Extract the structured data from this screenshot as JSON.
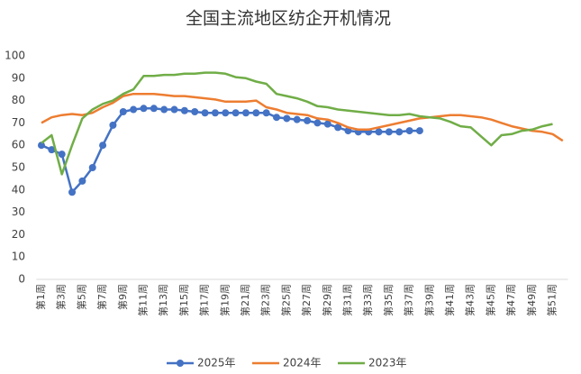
{
  "chart_data": {
    "type": "line",
    "title": "全国主流地区纺企开机情况",
    "categories": [
      "第1周",
      null,
      "第3周",
      null,
      "第5周",
      null,
      "第7周",
      null,
      "第9周",
      null,
      "第11周",
      null,
      "第13周",
      null,
      "第15周",
      null,
      "第17周",
      null,
      "第19周",
      null,
      "第21周",
      null,
      "第23周",
      null,
      "第25周",
      null,
      "第27周",
      null,
      "第29周",
      null,
      "第31周",
      null,
      "第33周",
      null,
      "第35周",
      null,
      "第37周",
      null,
      "第39周",
      null,
      "第41周",
      null,
      "第43周",
      null,
      "第45周",
      null,
      "第47周",
      null,
      "第49周",
      null,
      "第51周",
      null
    ],
    "series": [
      {
        "name": "2025年",
        "color": "#4472c4",
        "marker": true,
        "values": [
          60,
          58,
          56,
          39,
          44,
          50,
          60,
          69,
          75,
          76,
          76.5,
          76.5,
          76,
          76,
          75.5,
          75,
          74.5,
          74.5,
          74.5,
          74.5,
          74.5,
          74.5,
          74.5,
          72.5,
          72,
          71.5,
          71,
          70,
          69.5,
          68,
          66.5,
          66,
          66,
          66,
          66,
          66,
          66.5,
          66.5,
          null,
          null,
          null,
          null,
          null,
          null,
          null,
          null,
          null,
          null,
          null,
          null,
          null,
          null
        ]
      },
      {
        "name": "2024年",
        "color": "#ed7d31",
        "marker": false,
        "values": [
          70,
          72.5,
          73.5,
          74,
          73.5,
          74.5,
          77,
          79,
          82,
          83,
          83,
          83,
          82.5,
          82,
          82,
          81.5,
          81,
          80.5,
          79.5,
          79.5,
          79.5,
          80,
          77,
          76,
          74.5,
          74,
          73.5,
          72,
          71.5,
          70,
          68,
          67,
          67,
          68,
          69,
          70,
          71,
          72,
          72.5,
          73,
          73.5,
          73.5,
          73,
          72.5,
          71.5,
          70,
          68.5,
          67.5,
          66.5,
          66,
          65,
          62
        ]
      },
      {
        "name": "2023年",
        "color": "#70ad47",
        "marker": false,
        "values": [
          61,
          64.5,
          47,
          60,
          72,
          76,
          78.5,
          80,
          83,
          85,
          91,
          91,
          91.5,
          91.5,
          92,
          92,
          92.5,
          92.5,
          92,
          90.5,
          90,
          88.5,
          87.5,
          83,
          82,
          81,
          79.5,
          77.5,
          77,
          76,
          75.5,
          75,
          74.5,
          74,
          73.5,
          73.5,
          74,
          73,
          72.5,
          72,
          70.5,
          68.5,
          68,
          64,
          60,
          64.5,
          65,
          66.5,
          67,
          68.5,
          69.5,
          null
        ]
      }
    ],
    "ylim": [
      0,
      100
    ],
    "yticks": [
      0,
      10,
      20,
      30,
      40,
      50,
      60,
      70,
      80,
      90,
      100
    ],
    "grid": false,
    "legend": "bottom"
  }
}
